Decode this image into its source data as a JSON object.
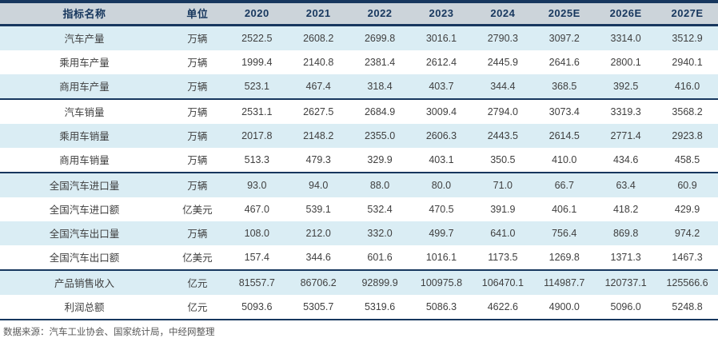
{
  "chart_data": {
    "type": "table",
    "columns": [
      "指标名称",
      "单位",
      "2020",
      "2021",
      "2022",
      "2023",
      "2024",
      "2025E",
      "2026E",
      "2027E"
    ],
    "rows": [
      {
        "name": "汽车产量",
        "unit": "万辆",
        "values": [
          "2522.5",
          "2608.2",
          "2699.8",
          "3016.1",
          "2790.3",
          "3097.2",
          "3314.0",
          "3512.9"
        ],
        "section_end": false
      },
      {
        "name": "乘用车产量",
        "unit": "万辆",
        "values": [
          "1999.4",
          "2140.8",
          "2381.4",
          "2612.4",
          "2445.9",
          "2641.6",
          "2800.1",
          "2940.1"
        ],
        "section_end": false
      },
      {
        "name": "商用车产量",
        "unit": "万辆",
        "values": [
          "523.1",
          "467.4",
          "318.4",
          "403.7",
          "344.4",
          "368.5",
          "392.5",
          "416.0"
        ],
        "section_end": true
      },
      {
        "name": "汽车销量",
        "unit": "万辆",
        "values": [
          "2531.1",
          "2627.5",
          "2684.9",
          "3009.4",
          "2794.0",
          "3073.4",
          "3319.3",
          "3568.2"
        ],
        "section_end": false
      },
      {
        "name": "乘用车销量",
        "unit": "万辆",
        "values": [
          "2017.8",
          "2148.2",
          "2355.0",
          "2606.3",
          "2443.5",
          "2614.5",
          "2771.4",
          "2923.8"
        ],
        "section_end": false
      },
      {
        "name": "商用车销量",
        "unit": "万辆",
        "values": [
          "513.3",
          "479.3",
          "329.9",
          "403.1",
          "350.5",
          "410.0",
          "434.6",
          "458.5"
        ],
        "section_end": true
      },
      {
        "name": "全国汽车进口量",
        "unit": "万辆",
        "values": [
          "93.0",
          "94.0",
          "88.0",
          "80.0",
          "71.0",
          "66.7",
          "63.4",
          "60.9"
        ],
        "section_end": false
      },
      {
        "name": "全国汽车进口额",
        "unit": "亿美元",
        "values": [
          "467.0",
          "539.1",
          "532.4",
          "470.5",
          "391.9",
          "406.1",
          "418.2",
          "429.9"
        ],
        "section_end": false
      },
      {
        "name": "全国汽车出口量",
        "unit": "万辆",
        "values": [
          "108.0",
          "212.0",
          "332.0",
          "499.7",
          "641.0",
          "756.4",
          "869.8",
          "974.2"
        ],
        "section_end": false
      },
      {
        "name": "全国汽车出口额",
        "unit": "亿美元",
        "values": [
          "157.4",
          "344.6",
          "601.6",
          "1016.1",
          "1173.5",
          "1269.8",
          "1371.3",
          "1467.3"
        ],
        "section_end": true
      },
      {
        "name": "产品销售收入",
        "unit": "亿元",
        "values": [
          "81557.7",
          "86706.2",
          "92899.9",
          "100975.8",
          "106470.1",
          "114987.7",
          "120737.1",
          "125566.6"
        ],
        "section_end": false
      },
      {
        "name": "利润总额",
        "unit": "亿元",
        "values": [
          "5093.6",
          "5305.7",
          "5319.6",
          "5086.3",
          "4622.6",
          "4900.0",
          "5096.0",
          "5248.8"
        ],
        "section_end": false
      }
    ]
  },
  "footer": {
    "source_note": "数据来源：汽车工业协会、国家统计局，中经网整理"
  },
  "colors": {
    "dark_navy": "#17375e",
    "header_bg": "#ccd4da",
    "row_alt_bg": "#daedf4",
    "cell_text": "#3f3f3f",
    "source_text": "#595959"
  }
}
